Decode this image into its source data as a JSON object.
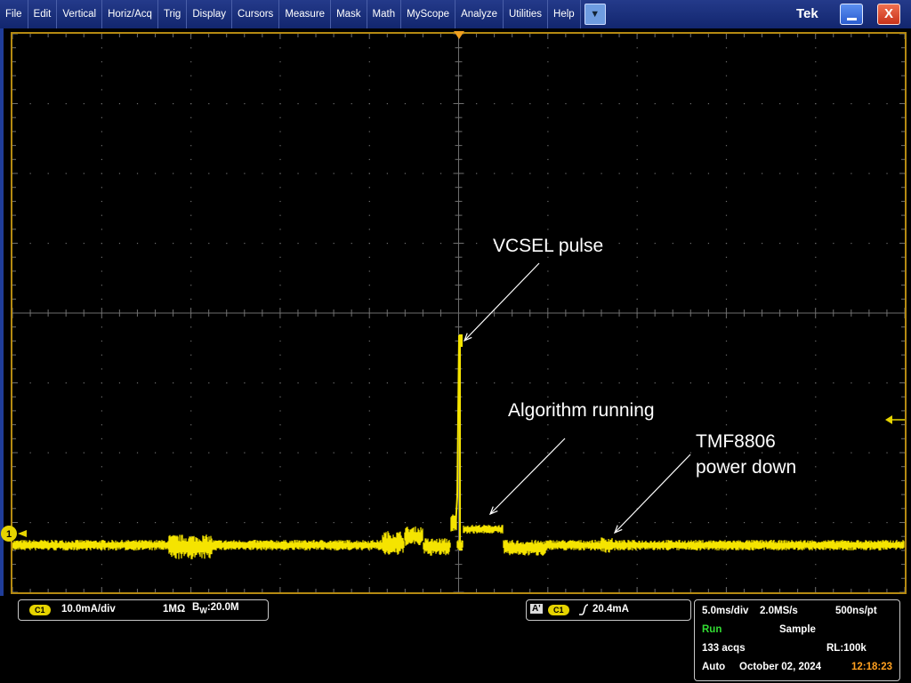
{
  "menu": {
    "items": [
      "File",
      "Edit",
      "Vertical",
      "Horiz/Acq",
      "Trig",
      "Display",
      "Cursors",
      "Measure",
      "Mask",
      "Math",
      "MyScope",
      "Analyze",
      "Utilities",
      "Help"
    ],
    "dropdown_icon": "chevron-down-icon",
    "brand": "Tek"
  },
  "window": {
    "minimize_icon": "minimize-icon",
    "close_label": "X"
  },
  "screen": {
    "channel_marker": "1",
    "annotations": {
      "vcsel": "VCSEL pulse",
      "algorithm": "Algorithm running",
      "powerdown_line1": "TMF8806",
      "powerdown_line2": "power down"
    }
  },
  "channel": {
    "badge": "C1",
    "scale": "10.0mA/div",
    "impedance": "1MΩ",
    "bw_prefix": "B",
    "bw_sub": "W",
    "bw_value": ":20.0M"
  },
  "trigger": {
    "mode_badge": "A'",
    "source_badge": "C1",
    "slope_icon": "rising-edge-icon",
    "level": "20.4mA"
  },
  "acquisition": {
    "timebase": "5.0ms/div",
    "sample_rate": "2.0MS/s",
    "resolution": "500ns/pt",
    "state": "Run",
    "mode": "Sample",
    "acqs": "133 acqs",
    "record_length": "RL:100k",
    "trigger_mode": "Auto",
    "date": "October 02, 2024",
    "time": "12:18:23"
  },
  "colors": {
    "trace": "#f5e400",
    "graticule": "#6e6e6e",
    "run": "#33dd33",
    "time": "#ffa020",
    "frame": "#b58a12"
  }
}
